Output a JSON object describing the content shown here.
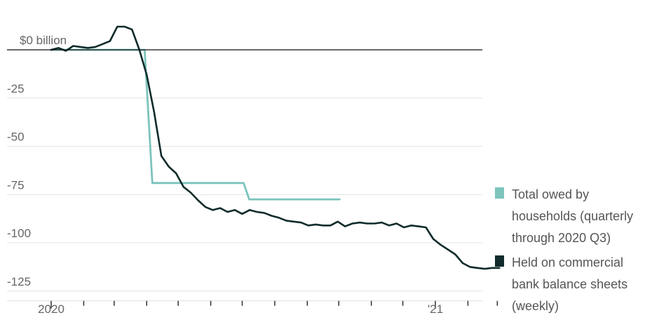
{
  "chart_data": {
    "type": "line",
    "title": "",
    "xlabel": "",
    "ylabel": "",
    "y_unit_label": "$0 billion",
    "ylim": [
      -128,
      14
    ],
    "y_ticks": [
      {
        "value": -25,
        "label": "-25"
      },
      {
        "value": -50,
        "label": "-50"
      },
      {
        "value": -75,
        "label": "-75"
      },
      {
        "value": -100,
        "label": "-100"
      },
      {
        "value": -125,
        "label": "-125"
      }
    ],
    "x_range": [
      "2020-01-01",
      "2021-03-15"
    ],
    "x_labels": [
      {
        "date": "2020-01-01",
        "label": "2020"
      },
      {
        "date": "2021-01-01",
        "label": "'21"
      }
    ],
    "x_minor_ticks": [
      "2020-02-01",
      "2020-03-01",
      "2020-04-01",
      "2020-05-01",
      "2020-06-01",
      "2020-07-01",
      "2020-08-01",
      "2020-09-01",
      "2020-10-01",
      "2020-11-01",
      "2020-12-01",
      "2021-02-01",
      "2021-03-01"
    ],
    "grid": true,
    "legend_position": "right",
    "series": [
      {
        "name": "Total owed by households (quarterly through 2020 Q3)",
        "color": "#7cc4bc",
        "step": true,
        "x": [
          "2020-01-01",
          "2020-04-01",
          "2020-07-01",
          "2020-10-01"
        ],
        "y": [
          0,
          -69,
          -77.5,
          -77.5
        ]
      },
      {
        "name": "Held on commercial bank balance sheets (weekly)",
        "color": "#0f2b2b",
        "x": [
          "2020-01-01",
          "2020-01-08",
          "2020-01-15",
          "2020-01-22",
          "2020-01-29",
          "2020-02-05",
          "2020-02-12",
          "2020-02-19",
          "2020-02-26",
          "2020-03-04",
          "2020-03-11",
          "2020-03-18",
          "2020-03-25",
          "2020-04-01",
          "2020-04-08",
          "2020-04-15",
          "2020-04-22",
          "2020-04-29",
          "2020-05-06",
          "2020-05-13",
          "2020-05-20",
          "2020-05-27",
          "2020-06-03",
          "2020-06-10",
          "2020-06-17",
          "2020-06-24",
          "2020-07-01",
          "2020-07-08",
          "2020-07-15",
          "2020-07-22",
          "2020-07-29",
          "2020-08-05",
          "2020-08-12",
          "2020-08-19",
          "2020-08-26",
          "2020-09-02",
          "2020-09-09",
          "2020-09-16",
          "2020-09-23",
          "2020-09-30",
          "2020-10-07",
          "2020-10-14",
          "2020-10-21",
          "2020-10-28",
          "2020-11-04",
          "2020-11-11",
          "2020-11-18",
          "2020-11-25",
          "2020-12-02",
          "2020-12-09",
          "2020-12-16",
          "2020-12-23",
          "2020-12-30",
          "2021-01-06",
          "2021-01-13",
          "2021-01-20",
          "2021-01-27",
          "2021-02-03",
          "2021-02-10",
          "2021-02-17",
          "2021-02-24",
          "2021-03-03"
        ],
        "y": [
          0,
          1,
          -0.5,
          2,
          1.5,
          1,
          1.5,
          3,
          4.5,
          12,
          12,
          10.5,
          0,
          -13,
          -32,
          -55,
          -60.5,
          -64,
          -71,
          -74,
          -78,
          -81.5,
          -83,
          -82,
          -84,
          -83,
          -85,
          -83,
          -84,
          -84.5,
          -86,
          -87,
          -88.5,
          -89,
          -89.5,
          -91,
          -90.5,
          -91,
          -91,
          -89,
          -91.5,
          -90,
          -89.5,
          -90,
          -90,
          -89.5,
          -91,
          -90,
          -92,
          -91,
          -91.5,
          -92,
          -98,
          -101,
          -103.5,
          -106,
          -110.5,
          -112.5,
          -113,
          -113.5,
          -113,
          -113
        ]
      }
    ]
  },
  "legend": {
    "items": [
      {
        "label": "Total owed by\nhouseholds (quarterly\nthrough 2020 Q3)",
        "color": "#7cc4bc"
      },
      {
        "label": "Held on commercial\nbank balance sheets\n(weekly)",
        "color": "#0f2b2b"
      }
    ]
  }
}
